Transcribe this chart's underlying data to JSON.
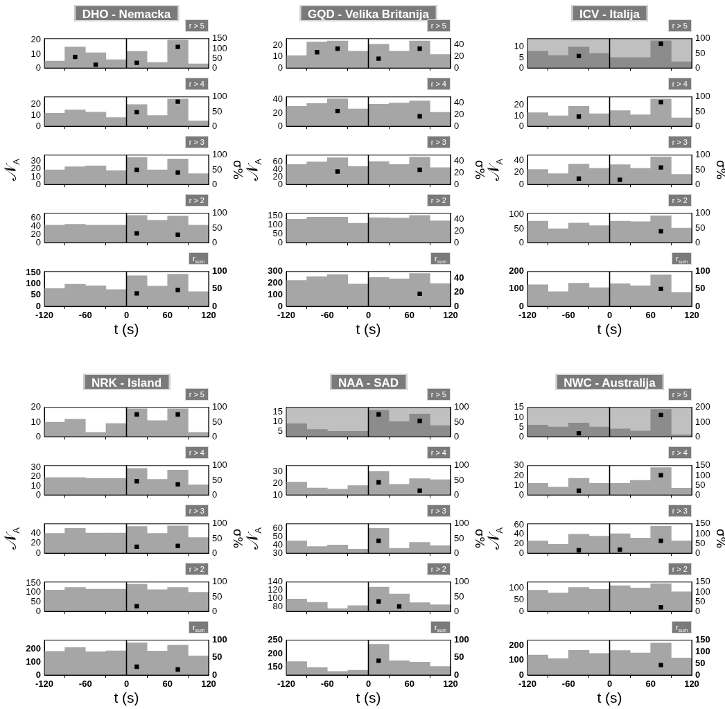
{
  "chart_data": [
    {
      "type": "histogram",
      "title": "DHO - Nemacka",
      "subtitle": "r > 5",
      "bins": [
        -120,
        -90,
        -60,
        -30,
        0,
        30,
        60,
        90,
        120
      ],
      "xlim": [
        -120,
        120
      ],
      "xticks": [
        -120,
        -60,
        0,
        60,
        120
      ],
      "tick_labels": "y",
      "ylim": [
        0,
        21
      ],
      "yticks": [
        0,
        10,
        20
      ],
      "y2lim": [
        0,
        150
      ],
      "y2ticks": [
        0,
        50,
        100,
        150
      ],
      "marker": "square",
      "ref_lines": [
        {
          "axis": "x",
          "value": 0,
          "color": "#000000"
        }
      ],
      "series": [
        {
          "type": "histogram",
          "color": "#a6a6a6",
          "values": [
            5,
            15,
            11,
            6,
            12,
            4,
            20,
            3
          ]
        },
        {
          "type": "scatter",
          "axis": "y2",
          "color": "#000000",
          "x": [
            -75,
            -45,
            15,
            75
          ],
          "values": [
            57,
            17,
            27,
            108
          ]
        }
      ]
    },
    {
      "type": "histogram",
      "subtitle": "r > 4",
      "bins": [
        -120,
        -90,
        -60,
        -30,
        0,
        30,
        60,
        90,
        120
      ],
      "xlim": [
        -120,
        120
      ],
      "xticks": [
        -120,
        -60,
        0,
        60,
        120
      ],
      "tick_labels": "y",
      "ylim": [
        0,
        27
      ],
      "yticks": [
        0,
        10,
        20
      ],
      "y2lim": [
        0,
        100
      ],
      "y2ticks": [
        0,
        50,
        100
      ],
      "marker": "square",
      "ref_lines": [
        {
          "axis": "x",
          "value": 0,
          "color": "#000000"
        }
      ],
      "series": [
        {
          "type": "histogram",
          "color": "#a6a6a6",
          "values": [
            12,
            15,
            13,
            8,
            20,
            10,
            25,
            5
          ]
        },
        {
          "type": "scatter",
          "axis": "y2",
          "color": "#000000",
          "x": [
            15,
            75
          ],
          "values": [
            48,
            84
          ]
        }
      ]
    },
    {
      "type": "histogram",
      "subtitle": "r > 3",
      "ylabel": "𝒩$_{A}$",
      "y2label": "σ%",
      "bins": [
        -120,
        -90,
        -60,
        -30,
        0,
        30,
        60,
        90,
        120
      ],
      "xlim": [
        -120,
        120
      ],
      "xticks": [
        -120,
        -60,
        0,
        60,
        120
      ],
      "tick_labels": "y",
      "ylim": [
        0,
        38
      ],
      "yticks": [
        0,
        10,
        20,
        30
      ],
      "y2lim": [
        0,
        100
      ],
      "y2ticks": [
        0,
        50,
        100
      ],
      "marker": "square",
      "ref_lines": [
        {
          "axis": "x",
          "value": 0,
          "color": "#000000"
        }
      ],
      "series": [
        {
          "type": "histogram",
          "color": "#a6a6a6",
          "values": [
            19,
            23,
            24,
            18,
            35,
            19,
            33,
            14
          ]
        },
        {
          "type": "scatter",
          "axis": "y2",
          "color": "#000000",
          "x": [
            15,
            75
          ],
          "values": [
            50,
            41
          ]
        }
      ]
    },
    {
      "type": "histogram",
      "subtitle": "r > 2",
      "bins": [
        -120,
        -90,
        -60,
        -30,
        0,
        30,
        60,
        90,
        120
      ],
      "xlim": [
        -120,
        120
      ],
      "xticks": [
        -120,
        -60,
        0,
        60,
        120
      ],
      "tick_labels": "y",
      "ylim": [
        0,
        72
      ],
      "yticks": [
        0,
        20,
        40,
        60
      ],
      "y2lim": [
        0,
        100
      ],
      "y2ticks": [
        0,
        50,
        100
      ],
      "marker": "square",
      "ref_lines": [
        {
          "axis": "x",
          "value": 0,
          "color": "#000000"
        }
      ],
      "series": [
        {
          "type": "histogram",
          "color": "#a6a6a6",
          "values": [
            43,
            45,
            43,
            43,
            67,
            55,
            65,
            43
          ]
        },
        {
          "type": "scatter",
          "axis": "y2",
          "color": "#000000",
          "x": [
            15,
            75
          ],
          "values": [
            32,
            27
          ]
        }
      ]
    },
    {
      "type": "histogram",
      "subtitle": "r$_{sum}$",
      "xlabel": "t (s)",
      "bins": [
        -120,
        -90,
        -60,
        -30,
        0,
        30,
        60,
        90,
        120
      ],
      "xlim": [
        -120,
        120
      ],
      "xticks": [
        -120,
        -60,
        0,
        60,
        120
      ],
      "ylim": [
        0,
        156
      ],
      "yticks": [
        0,
        50,
        100,
        150
      ],
      "y2lim": [
        0,
        100
      ],
      "y2ticks": [
        0,
        50,
        100
      ],
      "marker": "square",
      "ref_lines": [
        {
          "axis": "x",
          "value": 0,
          "color": "#000000"
        }
      ],
      "series": [
        {
          "type": "histogram",
          "color": "#a6a6a6",
          "values": [
            80,
            99,
            92,
            75,
            137,
            91,
            144,
            66
          ]
        },
        {
          "type": "scatter",
          "axis": "y2",
          "color": "#000000",
          "x": [
            15,
            75
          ],
          "values": [
            37,
            47
          ]
        }
      ]
    },
    {
      "type": "histogram",
      "title": "GQD - Velika Britanija",
      "subtitle": "r > 5",
      "bins": [
        -120,
        -90,
        -60,
        -30,
        0,
        30,
        60,
        90,
        120
      ],
      "xlim": [
        -120,
        120
      ],
      "xticks": [
        -120,
        -60,
        0,
        60,
        120
      ],
      "tick_labels": "y",
      "ylim": [
        0,
        26
      ],
      "yticks": [
        0,
        10,
        20
      ],
      "y2lim": [
        0,
        50
      ],
      "y2ticks": [
        0,
        20,
        40
      ],
      "marker": "square",
      "ref_lines": [
        {
          "axis": "x",
          "value": 0,
          "color": "#000000"
        }
      ],
      "series": [
        {
          "type": "histogram",
          "color": "#a6a6a6",
          "values": [
            11,
            23,
            24,
            15,
            21,
            15,
            24,
            12
          ]
        },
        {
          "type": "scatter",
          "axis": "y2",
          "color": "#000000",
          "x": [
            -75,
            -45,
            15,
            75
          ],
          "values": [
            27,
            33,
            16,
            33
          ]
        }
      ]
    },
    {
      "type": "histogram",
      "subtitle": "r > 4",
      "bins": [
        -120,
        -90,
        -60,
        -30,
        0,
        30,
        60,
        90,
        120
      ],
      "xlim": [
        -120,
        120
      ],
      "xticks": [
        -120,
        -60,
        0,
        60,
        120
      ],
      "tick_labels": "y",
      "ylim": [
        0,
        44
      ],
      "yticks": [
        0,
        20,
        40
      ],
      "y2lim": [
        0,
        50
      ],
      "y2ticks": [
        0,
        20,
        40
      ],
      "marker": "square",
      "ref_lines": [
        {
          "axis": "x",
          "value": 0,
          "color": "#000000"
        }
      ],
      "series": [
        {
          "type": "histogram",
          "color": "#a6a6a6",
          "values": [
            30,
            34,
            41,
            26,
            33,
            35,
            38,
            21
          ]
        },
        {
          "type": "scatter",
          "axis": "y2",
          "color": "#000000",
          "x": [
            -45,
            75
          ],
          "values": [
            26,
            17
          ]
        }
      ]
    },
    {
      "type": "histogram",
      "subtitle": "r > 3",
      "ylabel": "𝒩$_{A}$",
      "y2label": "σ%",
      "bins": [
        -120,
        -90,
        -60,
        -30,
        0,
        30,
        60,
        90,
        120
      ],
      "xlim": [
        -120,
        120
      ],
      "xticks": [
        -120,
        -60,
        0,
        60,
        120
      ],
      "tick_labels": "y",
      "ylim": [
        0,
        78
      ],
      "yticks": [
        0,
        20,
        40,
        60
      ],
      "y2lim": [
        0,
        50
      ],
      "y2ticks": [
        0,
        20,
        40
      ],
      "marker": "square",
      "ref_lines": [
        {
          "axis": "x",
          "value": 0,
          "color": "#000000"
        }
      ],
      "series": [
        {
          "type": "histogram",
          "color": "#a6a6a6",
          "values": [
            53,
            60,
            71,
            48,
            61,
            53,
            73,
            45
          ]
        },
        {
          "type": "scatter",
          "axis": "y2",
          "color": "#000000",
          "x": [
            -45,
            75
          ],
          "values": [
            22,
            25
          ]
        }
      ]
    },
    {
      "type": "histogram",
      "subtitle": "r > 2",
      "bins": [
        -120,
        -90,
        -60,
        -30,
        0,
        30,
        60,
        90,
        120
      ],
      "xlim": [
        -120,
        120
      ],
      "xticks": [
        -120,
        -60,
        0,
        60,
        120
      ],
      "tick_labels": "y",
      "ylim": [
        0,
        162
      ],
      "yticks": [
        0,
        50,
        100,
        150
      ],
      "y2lim": [
        0,
        50
      ],
      "y2ticks": [
        0,
        20,
        40
      ],
      "ref_lines": [
        {
          "axis": "x",
          "value": 0,
          "color": "#000000"
        }
      ],
      "series": [
        {
          "type": "histogram",
          "color": "#a6a6a6",
          "values": [
            129,
            141,
            141,
            107,
            138,
            136,
            150,
            121
          ]
        }
      ]
    },
    {
      "type": "histogram",
      "subtitle": "r$_{sum}$",
      "xlabel": "t (s)",
      "bins": [
        -120,
        -90,
        -60,
        -30,
        0,
        30,
        60,
        90,
        120
      ],
      "xlim": [
        -120,
        120
      ],
      "xticks": [
        -120,
        -60,
        0,
        60,
        120
      ],
      "ylim": [
        0,
        300
      ],
      "yticks": [
        0,
        100,
        200,
        300
      ],
      "y2lim": [
        0,
        50
      ],
      "y2ticks": [
        0,
        20,
        40
      ],
      "marker": "square",
      "ref_lines": [
        {
          "axis": "x",
          "value": 0,
          "color": "#000000"
        }
      ],
      "series": [
        {
          "type": "histogram",
          "color": "#a6a6a6",
          "values": [
            224,
            256,
            275,
            193,
            249,
            237,
            283,
            197
          ]
        },
        {
          "type": "scatter",
          "axis": "y2",
          "color": "#000000",
          "x": [
            75
          ],
          "values": [
            18
          ]
        }
      ]
    },
    {
      "type": "histogram",
      "title": "ICV - Italija",
      "subtitle": "r > 5",
      "bins": [
        -120,
        -90,
        -60,
        -30,
        0,
        30,
        60,
        90,
        120
      ],
      "xlim": [
        -120,
        120
      ],
      "xticks": [
        -120,
        -60,
        0,
        60,
        120
      ],
      "tick_labels": "y",
      "ylim": [
        0,
        14
      ],
      "yticks": [
        0,
        5,
        10
      ],
      "y2lim": [
        0,
        100
      ],
      "y2ticks": [
        0,
        50,
        100
      ],
      "marker": "square",
      "bands": [
        {
          "axis": "x",
          "from": -120,
          "to": 120,
          "color": "#c0c0c0"
        }
      ],
      "ref_lines": [
        {
          "axis": "x",
          "value": 0,
          "color": "#000000"
        }
      ],
      "series": [
        {
          "type": "histogram",
          "color": "#8c8c8c",
          "values": [
            8,
            6,
            10,
            7,
            5,
            5,
            13,
            3
          ]
        },
        {
          "type": "scatter",
          "axis": "y2",
          "color": "#000000",
          "x": [
            -45,
            75
          ],
          "values": [
            41,
            83
          ]
        }
      ]
    },
    {
      "type": "histogram",
      "subtitle": "r > 4",
      "bins": [
        -120,
        -90,
        -60,
        -30,
        0,
        30,
        60,
        90,
        120
      ],
      "xlim": [
        -120,
        120
      ],
      "xticks": [
        -120,
        -60,
        0,
        60,
        120
      ],
      "tick_labels": "y",
      "ylim": [
        0,
        28
      ],
      "yticks": [
        0,
        10,
        20
      ],
      "y2lim": [
        0,
        100
      ],
      "y2ticks": [
        0,
        50,
        100
      ],
      "marker": "square",
      "ref_lines": [
        {
          "axis": "x",
          "value": 0,
          "color": "#000000"
        }
      ],
      "series": [
        {
          "type": "histogram",
          "color": "#a6a6a6",
          "values": [
            13,
            10,
            19,
            12,
            15,
            11,
            26,
            8
          ]
        },
        {
          "type": "scatter",
          "axis": "y2",
          "color": "#000000",
          "x": [
            -45,
            75
          ],
          "values": [
            33,
            82
          ]
        }
      ]
    },
    {
      "type": "histogram",
      "subtitle": "r > 3",
      "ylabel": "𝒩$_{A}$",
      "y2label": "σ%",
      "bins": [
        -120,
        -90,
        -60,
        -30,
        0,
        30,
        60,
        90,
        120
      ],
      "xlim": [
        -120,
        120
      ],
      "xticks": [
        -120,
        -60,
        0,
        60,
        120
      ],
      "tick_labels": "y",
      "ylim": [
        0,
        49
      ],
      "yticks": [
        0,
        20,
        40
      ],
      "y2lim": [
        0,
        100
      ],
      "y2ticks": [
        0,
        50,
        100
      ],
      "marker": "square",
      "ref_lines": [
        {
          "axis": "x",
          "value": 0,
          "color": "#000000"
        }
      ],
      "series": [
        {
          "type": "histogram",
          "color": "#a6a6a6",
          "values": [
            25,
            18,
            34,
            27,
            33,
            27,
            46,
            17
          ]
        },
        {
          "type": "scatter",
          "axis": "y2",
          "color": "#000000",
          "x": [
            -45,
            15,
            75
          ],
          "values": [
            20,
            16,
            58
          ]
        }
      ]
    },
    {
      "type": "histogram",
      "subtitle": "r > 2",
      "bins": [
        -120,
        -90,
        -60,
        -30,
        0,
        30,
        60,
        90,
        120
      ],
      "xlim": [
        -120,
        120
      ],
      "xticks": [
        -120,
        -60,
        0,
        60,
        120
      ],
      "tick_labels": "y",
      "ylim": [
        0,
        105
      ],
      "yticks": [
        0,
        50,
        100
      ],
      "y2lim": [
        0,
        100
      ],
      "y2ticks": [
        0,
        50,
        100
      ],
      "marker": "square",
      "ref_lines": [
        {
          "axis": "x",
          "value": 0,
          "color": "#000000"
        }
      ],
      "series": [
        {
          "type": "histogram",
          "color": "#a6a6a6",
          "values": [
            77,
            50,
            70,
            61,
            77,
            75,
            96,
            52
          ]
        },
        {
          "type": "scatter",
          "axis": "y2",
          "color": "#000000",
          "x": [
            75
          ],
          "values": [
            39
          ]
        }
      ]
    },
    {
      "type": "histogram",
      "subtitle": "r$_{sum}$",
      "xlabel": "t (s)",
      "bins": [
        -120,
        -90,
        -60,
        -30,
        0,
        30,
        60,
        90,
        120
      ],
      "xlim": [
        -120,
        120
      ],
      "xticks": [
        -120,
        -60,
        0,
        60,
        120
      ],
      "ylim": [
        0,
        200
      ],
      "yticks": [
        0,
        100,
        200
      ],
      "y2lim": [
        0,
        100
      ],
      "y2ticks": [
        0,
        50,
        100
      ],
      "marker": "square",
      "ref_lines": [
        {
          "axis": "x",
          "value": 0,
          "color": "#000000"
        }
      ],
      "series": [
        {
          "type": "histogram",
          "color": "#a6a6a6",
          "values": [
            124,
            84,
            133,
            107,
            130,
            118,
            181,
            80
          ]
        },
        {
          "type": "scatter",
          "axis": "y2",
          "color": "#000000",
          "x": [
            75
          ],
          "values": [
            50
          ]
        }
      ]
    },
    {
      "type": "histogram",
      "title": "NRK - Island",
      "subtitle": "r > 5",
      "bins": [
        -120,
        -90,
        -60,
        -30,
        0,
        30,
        60,
        90,
        120
      ],
      "xlim": [
        -120,
        120
      ],
      "xticks": [
        -120,
        -60,
        0,
        60,
        120
      ],
      "tick_labels": "y",
      "ylim": [
        0,
        20
      ],
      "yticks": [
        0,
        10,
        20
      ],
      "y2lim": [
        0,
        100
      ],
      "y2ticks": [
        0,
        50,
        100
      ],
      "marker": "square",
      "ref_lines": [
        {
          "axis": "x",
          "value": 0,
          "color": "#000000"
        }
      ],
      "series": [
        {
          "type": "histogram",
          "color": "#a6a6a6",
          "values": [
            10,
            12,
            3,
            9,
            19,
            11,
            19,
            3
          ]
        },
        {
          "type": "scatter",
          "axis": "y2",
          "color": "#000000",
          "x": [
            15,
            75
          ],
          "values": [
            76,
            76
          ]
        }
      ]
    },
    {
      "type": "histogram",
      "subtitle": "r > 4",
      "bins": [
        -120,
        -90,
        -60,
        -30,
        0,
        30,
        60,
        90,
        120
      ],
      "xlim": [
        -120,
        120
      ],
      "xticks": [
        -120,
        -60,
        0,
        60,
        120
      ],
      "tick_labels": "y",
      "ylim": [
        0,
        32
      ],
      "yticks": [
        0,
        10,
        20,
        30
      ],
      "y2lim": [
        0,
        100
      ],
      "y2ticks": [
        0,
        50,
        100
      ],
      "marker": "square",
      "ref_lines": [
        {
          "axis": "x",
          "value": 0,
          "color": "#000000"
        }
      ],
      "series": [
        {
          "type": "histogram",
          "color": "#a6a6a6",
          "values": [
            19,
            19,
            18,
            18,
            29,
            17,
            27,
            11
          ]
        },
        {
          "type": "scatter",
          "axis": "y2",
          "color": "#000000",
          "x": [
            15,
            75
          ],
          "values": [
            47,
            36
          ]
        }
      ]
    },
    {
      "type": "histogram",
      "subtitle": "r > 3",
      "ylabel": "𝒩$_{A}$",
      "y2label": "σ%",
      "bins": [
        -120,
        -90,
        -60,
        -30,
        0,
        30,
        60,
        90,
        120
      ],
      "xlim": [
        -120,
        120
      ],
      "xticks": [
        -120,
        -60,
        0,
        60,
        120
      ],
      "tick_labels": "y",
      "ylim": [
        0,
        58
      ],
      "yticks": [
        0,
        20,
        40
      ],
      "y2lim": [
        0,
        100
      ],
      "y2ticks": [
        0,
        50,
        100
      ],
      "marker": "square",
      "ref_lines": [
        {
          "axis": "x",
          "value": 0,
          "color": "#000000"
        }
      ],
      "series": [
        {
          "type": "histogram",
          "color": "#a6a6a6",
          "values": [
            39,
            49,
            40,
            40,
            53,
            39,
            54,
            31
          ]
        },
        {
          "type": "scatter",
          "axis": "y2",
          "color": "#000000",
          "x": [
            15,
            75
          ],
          "values": [
            22,
            25
          ]
        }
      ]
    },
    {
      "type": "histogram",
      "subtitle": "r > 2",
      "bins": [
        -120,
        -90,
        -60,
        -30,
        0,
        30,
        60,
        90,
        120
      ],
      "xlim": [
        -120,
        120
      ],
      "xticks": [
        -120,
        -60,
        0,
        60,
        120
      ],
      "tick_labels": "y",
      "ylim": [
        0,
        155
      ],
      "yticks": [
        0,
        50,
        100,
        150
      ],
      "y2lim": [
        0,
        100
      ],
      "y2ticks": [
        0,
        50,
        100
      ],
      "marker": "square",
      "ref_lines": [
        {
          "axis": "x",
          "value": 0,
          "color": "#000000"
        }
      ],
      "series": [
        {
          "type": "histogram",
          "color": "#a6a6a6",
          "values": [
            113,
            127,
            117,
            117,
            144,
            115,
            127,
            101
          ]
        },
        {
          "type": "scatter",
          "axis": "y2",
          "color": "#000000",
          "x": [
            15
          ],
          "values": [
            18
          ]
        }
      ]
    },
    {
      "type": "histogram",
      "subtitle": "r$_{sum}$",
      "xlabel": "t (s)",
      "bins": [
        -120,
        -90,
        -60,
        -30,
        0,
        30,
        60,
        90,
        120
      ],
      "xlim": [
        -120,
        120
      ],
      "xticks": [
        -120,
        -60,
        0,
        60,
        120
      ],
      "ylim": [
        0,
        268
      ],
      "yticks": [
        0,
        100,
        200
      ],
      "y2lim": [
        0,
        100
      ],
      "y2ticks": [
        0,
        50,
        100
      ],
      "marker": "square",
      "ref_lines": [
        {
          "axis": "x",
          "value": 0,
          "color": "#000000"
        }
      ],
      "series": [
        {
          "type": "histogram",
          "color": "#a6a6a6",
          "values": [
            183,
            212,
            180,
            186,
            248,
            185,
            230,
            148
          ]
        },
        {
          "type": "scatter",
          "axis": "y2",
          "color": "#000000",
          "x": [
            15,
            75
          ],
          "values": [
            24,
            16
          ]
        }
      ]
    },
    {
      "type": "histogram",
      "title": "NAA - SAD",
      "subtitle": "r > 5",
      "bins": [
        -120,
        -90,
        -60,
        -30,
        0,
        30,
        60,
        90,
        120
      ],
      "xlim": [
        -120,
        120
      ],
      "xticks": [
        -120,
        -60,
        0,
        60,
        120
      ],
      "tick_labels": "y",
      "ylim": [
        2.2,
        17.4
      ],
      "yticks": [
        5,
        10,
        15
      ],
      "y2lim": [
        0,
        100
      ],
      "y2ticks": [
        0,
        50,
        100
      ],
      "marker": "square",
      "bands": [
        {
          "axis": "x",
          "from": -120,
          "to": 120,
          "color": "#c0c0c0"
        }
      ],
      "ref_lines": [
        {
          "axis": "x",
          "value": 0,
          "color": "#000000"
        }
      ],
      "series": [
        {
          "type": "histogram",
          "color": "#8c8c8c",
          "values": [
            9,
            6,
            5,
            5,
            16,
            10,
            14,
            8
          ]
        },
        {
          "type": "scatter",
          "axis": "y2",
          "color": "#000000",
          "x": [
            15,
            75
          ],
          "values": [
            76,
            54
          ]
        }
      ]
    },
    {
      "type": "histogram",
      "subtitle": "r > 4",
      "bins": [
        -120,
        -90,
        -60,
        -30,
        0,
        30,
        60,
        90,
        120
      ],
      "xlim": [
        -120,
        120
      ],
      "xticks": [
        -120,
        -60,
        0,
        60,
        120
      ],
      "tick_labels": "y",
      "ylim": [
        10,
        35
      ],
      "yticks": [
        10,
        20,
        30
      ],
      "y2lim": [
        0,
        100
      ],
      "y2ticks": [
        0,
        50,
        100
      ],
      "marker": "square",
      "ref_lines": [
        {
          "axis": "x",
          "value": 0,
          "color": "#000000"
        }
      ],
      "series": [
        {
          "type": "histogram",
          "color": "#a6a6a6",
          "values": [
            21,
            16,
            15,
            18,
            30,
            19,
            24,
            23
          ]
        },
        {
          "type": "scatter",
          "axis": "y2",
          "color": "#000000",
          "x": [
            15,
            75
          ],
          "values": [
            43,
            15
          ]
        }
      ]
    },
    {
      "type": "histogram",
      "subtitle": "r > 3",
      "ylabel": "𝒩$_{A}$",
      "y2label": "σ%",
      "bins": [
        -120,
        -90,
        -60,
        -30,
        0,
        30,
        60,
        90,
        120
      ],
      "xlim": [
        -120,
        120
      ],
      "xticks": [
        -120,
        -60,
        0,
        60,
        120
      ],
      "tick_labels": "y",
      "ylim": [
        30,
        65.5
      ],
      "yticks": [
        30,
        40,
        50,
        60
      ],
      "y2lim": [
        0,
        100
      ],
      "y2ticks": [
        0,
        50,
        100
      ],
      "marker": "square",
      "ref_lines": [
        {
          "axis": "x",
          "value": 0,
          "color": "#000000"
        }
      ],
      "series": [
        {
          "type": "histogram",
          "color": "#a6a6a6",
          "values": [
            45,
            38,
            40,
            35,
            60,
            36,
            43,
            39
          ]
        },
        {
          "type": "scatter",
          "axis": "y2",
          "color": "#000000",
          "x": [
            15
          ],
          "values": [
            42
          ]
        }
      ]
    },
    {
      "type": "histogram",
      "subtitle": "r > 2",
      "bins": [
        -120,
        -90,
        -60,
        -30,
        0,
        30,
        60,
        90,
        120
      ],
      "xlim": [
        -120,
        120
      ],
      "xticks": [
        -120,
        -60,
        0,
        60,
        120
      ],
      "tick_labels": "y",
      "ylim": [
        69,
        140
      ],
      "yticks": [
        80,
        100,
        120,
        140
      ],
      "y2lim": [
        0,
        100
      ],
      "y2ticks": [
        0,
        50,
        100
      ],
      "marker": "square",
      "ref_lines": [
        {
          "axis": "x",
          "value": 0,
          "color": "#000000"
        }
      ],
      "series": [
        {
          "type": "histogram",
          "color": "#a6a6a6",
          "values": [
            99,
            91,
            76,
            83,
            128,
            111,
            90,
            85
          ]
        },
        {
          "type": "scatter",
          "axis": "y2",
          "color": "#000000",
          "x": [
            15,
            45
          ],
          "values": [
            34,
            17
          ]
        }
      ]
    },
    {
      "type": "histogram",
      "subtitle": "r$_{sum}$",
      "xlabel": "t (s)",
      "bins": [
        -120,
        -90,
        -60,
        -30,
        0,
        30,
        60,
        90,
        120
      ],
      "xlim": [
        -120,
        120
      ],
      "xticks": [
        -120,
        -60,
        0,
        60,
        120
      ],
      "ylim": [
        121,
        250
      ],
      "yticks": [
        150,
        200,
        250
      ],
      "y2lim": [
        0,
        100
      ],
      "y2ticks": [
        0,
        50,
        100
      ],
      "marker": "square",
      "ref_lines": [
        {
          "axis": "x",
          "value": 0,
          "color": "#000000"
        }
      ],
      "series": [
        {
          "type": "histogram",
          "color": "#a6a6a6",
          "values": [
            171,
            149,
            134,
            139,
            235,
            174,
            169,
            153
          ]
        },
        {
          "type": "scatter",
          "axis": "y2",
          "color": "#000000",
          "x": [
            15
          ],
          "values": [
            41
          ]
        }
      ]
    },
    {
      "type": "histogram",
      "title": "NWC - Australija",
      "subtitle": "r > 5",
      "bins": [
        -120,
        -90,
        -60,
        -30,
        0,
        30,
        60,
        90,
        120
      ],
      "xlim": [
        -120,
        120
      ],
      "xticks": [
        -120,
        -60,
        0,
        60,
        120
      ],
      "tick_labels": "y",
      "ylim": [
        0,
        15
      ],
      "yticks": [
        0,
        5,
        10,
        15
      ],
      "y2lim": [
        0,
        200
      ],
      "y2ticks": [
        0,
        100,
        200
      ],
      "marker": "square",
      "bands": [
        {
          "axis": "x",
          "from": -120,
          "to": 120,
          "color": "#c0c0c0"
        }
      ],
      "ref_lines": [
        {
          "axis": "x",
          "value": 0,
          "color": "#000000"
        }
      ],
      "series": [
        {
          "type": "histogram",
          "color": "#8c8c8c",
          "values": [
            6,
            5,
            7,
            5,
            4,
            3,
            14,
            1
          ]
        },
        {
          "type": "scatter",
          "axis": "y2",
          "color": "#000000",
          "x": [
            -45,
            75
          ],
          "values": [
            24,
            148
          ]
        }
      ]
    },
    {
      "type": "histogram",
      "subtitle": "r > 4",
      "bins": [
        -120,
        -90,
        -60,
        -30,
        0,
        30,
        60,
        90,
        120
      ],
      "xlim": [
        -120,
        120
      ],
      "xticks": [
        -120,
        -60,
        0,
        60,
        120
      ],
      "tick_labels": "y",
      "ylim": [
        0,
        30
      ],
      "yticks": [
        0,
        10,
        20,
        30
      ],
      "y2lim": [
        0,
        150
      ],
      "y2ticks": [
        0,
        50,
        100,
        150
      ],
      "marker": "square",
      "ref_lines": [
        {
          "axis": "x",
          "value": 0,
          "color": "#000000"
        }
      ],
      "series": [
        {
          "type": "histogram",
          "color": "#a6a6a6",
          "values": [
            12,
            8,
            17,
            12,
            12,
            15,
            28,
            7
          ]
        },
        {
          "type": "scatter",
          "axis": "y2",
          "color": "#000000",
          "x": [
            -45,
            75
          ],
          "values": [
            22,
            101
          ]
        }
      ]
    },
    {
      "type": "histogram",
      "subtitle": "r > 3",
      "ylabel": "𝒩$_{A}$",
      "y2label": "σ%",
      "bins": [
        -120,
        -90,
        -60,
        -30,
        0,
        30,
        60,
        90,
        120
      ],
      "xlim": [
        -120,
        120
      ],
      "xticks": [
        -120,
        -60,
        0,
        60,
        120
      ],
      "tick_labels": "y",
      "ylim": [
        0,
        62
      ],
      "yticks": [
        0,
        20,
        40,
        60
      ],
      "y2lim": [
        0,
        150
      ],
      "y2ticks": [
        0,
        50,
        100,
        150
      ],
      "marker": "square",
      "ref_lines": [
        {
          "axis": "x",
          "value": 0,
          "color": "#000000"
        }
      ],
      "series": [
        {
          "type": "histogram",
          "color": "#a6a6a6",
          "values": [
            26,
            19,
            40,
            36,
            41,
            32,
            57,
            26
          ]
        },
        {
          "type": "scatter",
          "axis": "y2",
          "color": "#000000",
          "x": [
            -45,
            15,
            75
          ],
          "values": [
            15,
            18,
            63
          ]
        }
      ]
    },
    {
      "type": "histogram",
      "subtitle": "r > 2",
      "bins": [
        -120,
        -90,
        -60,
        -30,
        0,
        30,
        60,
        90,
        120
      ],
      "xlim": [
        -120,
        120
      ],
      "xticks": [
        -120,
        -60,
        0,
        60,
        120
      ],
      "tick_labels": "y",
      "ylim": [
        0,
        126
      ],
      "yticks": [
        0,
        50,
        100
      ],
      "y2lim": [
        0,
        150
      ],
      "y2ticks": [
        0,
        50,
        100,
        150
      ],
      "marker": "square",
      "ref_lines": [
        {
          "axis": "x",
          "value": 0,
          "color": "#000000"
        }
      ],
      "series": [
        {
          "type": "histogram",
          "color": "#a6a6a6",
          "values": [
            91,
            79,
            103,
            95,
            110,
            101,
            119,
            84
          ]
        },
        {
          "type": "scatter",
          "axis": "y2",
          "color": "#000000",
          "x": [
            75
          ],
          "values": [
            21
          ]
        }
      ]
    },
    {
      "type": "histogram",
      "subtitle": "r$_{sum}$",
      "xlabel": "t (s)",
      "bins": [
        -120,
        -90,
        -60,
        -30,
        0,
        30,
        60,
        90,
        120
      ],
      "xlim": [
        -120,
        120
      ],
      "xticks": [
        -120,
        -60,
        0,
        60,
        120
      ],
      "ylim": [
        0,
        237
      ],
      "yticks": [
        0,
        100,
        200
      ],
      "y2lim": [
        0,
        150
      ],
      "y2ticks": [
        0,
        50,
        100,
        150
      ],
      "marker": "square",
      "ref_lines": [
        {
          "axis": "x",
          "value": 0,
          "color": "#000000"
        }
      ],
      "series": [
        {
          "type": "histogram",
          "color": "#a6a6a6",
          "values": [
            137,
            112,
            168,
            147,
            167,
            151,
            218,
            117
          ]
        },
        {
          "type": "scatter",
          "axis": "y2",
          "color": "#000000",
          "x": [
            75
          ],
          "values": [
            43
          ]
        }
      ]
    }
  ]
}
